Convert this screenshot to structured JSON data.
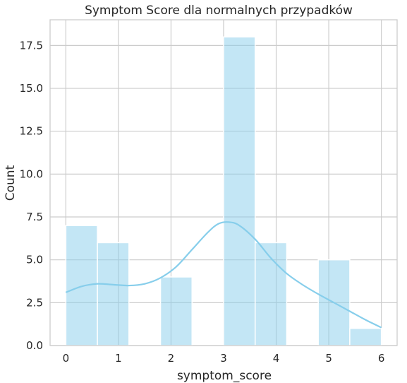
{
  "chart_data": {
    "type": "bar",
    "title": "Symptom Score dla normalnych przypadków",
    "xlabel": "symptom_score",
    "ylabel": "Count",
    "xlim": [
      -0.3,
      6.3
    ],
    "ylim": [
      0,
      19
    ],
    "x_ticks": [
      0,
      1,
      2,
      3,
      4,
      5,
      6
    ],
    "x_tick_labels": [
      "0",
      "1",
      "2",
      "3",
      "4",
      "5",
      "6"
    ],
    "y_ticks": [
      0,
      2.5,
      5,
      7.5,
      10,
      12.5,
      15,
      17.5
    ],
    "y_tick_labels": [
      "0.0",
      "2.5",
      "5.0",
      "7.5",
      "10.0",
      "12.5",
      "15.0",
      "17.5"
    ],
    "grid": true,
    "bins": [
      {
        "start": 0.0,
        "end": 0.6,
        "count": 7
      },
      {
        "start": 0.6,
        "end": 1.2,
        "count": 6
      },
      {
        "start": 1.2,
        "end": 1.8,
        "count": 0
      },
      {
        "start": 1.8,
        "end": 2.4,
        "count": 4
      },
      {
        "start": 2.4,
        "end": 3.0,
        "count": 0
      },
      {
        "start": 3.0,
        "end": 3.6,
        "count": 18
      },
      {
        "start": 3.6,
        "end": 4.2,
        "count": 6
      },
      {
        "start": 4.2,
        "end": 4.8,
        "count": 0
      },
      {
        "start": 4.8,
        "end": 5.4,
        "count": 5
      },
      {
        "start": 5.4,
        "end": 6.0,
        "count": 1
      }
    ],
    "kde": {
      "x": [
        0,
        0.3,
        0.6,
        0.9,
        1.2,
        1.5,
        1.8,
        2.1,
        2.4,
        2.7,
        2.9,
        3.1,
        3.3,
        3.6,
        3.9,
        4.2,
        4.5,
        4.8,
        5.1,
        5.4,
        5.7,
        6.0
      ],
      "y": [
        3.1,
        3.45,
        3.6,
        3.55,
        3.5,
        3.6,
        3.95,
        4.6,
        5.6,
        6.6,
        7.1,
        7.2,
        7.0,
        6.2,
        5.1,
        4.2,
        3.55,
        3.0,
        2.5,
        2.0,
        1.5,
        1.05
      ]
    },
    "colors": {
      "bar": "#87ceeb",
      "kde": "#87ceeb",
      "grid": "#cccccc"
    }
  }
}
